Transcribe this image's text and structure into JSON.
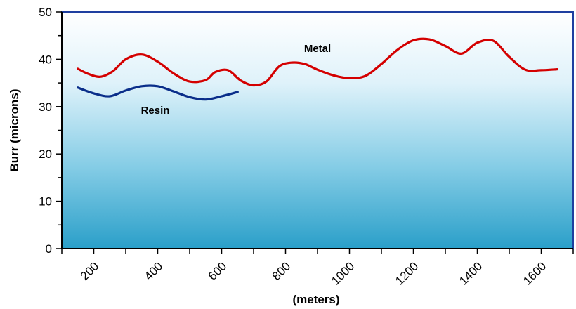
{
  "chart_data": {
    "type": "line",
    "title": "",
    "xlabel": "(meters)",
    "ylabel": "Burr (microns)",
    "xlim": [
      100,
      1700
    ],
    "ylim": [
      0,
      50
    ],
    "x_ticks": [
      200,
      400,
      600,
      800,
      1000,
      1200,
      1400,
      1600
    ],
    "y_ticks": [
      0,
      10,
      20,
      30,
      40,
      50
    ],
    "grid": false,
    "legend": "inline labels",
    "background": "gradient light-blue to white",
    "series": [
      {
        "name": "Metal",
        "color": "#d40000",
        "x": [
          150,
          180,
          220,
          260,
          300,
          350,
          400,
          450,
          500,
          550,
          580,
          620,
          660,
          700,
          740,
          780,
          820,
          860,
          900,
          950,
          1000,
          1050,
          1100,
          1150,
          1200,
          1250,
          1300,
          1350,
          1400,
          1450,
          1500,
          1550,
          1600,
          1650
        ],
        "values": [
          38,
          37,
          36.3,
          37.5,
          40,
          41,
          39.5,
          37,
          35.3,
          35.6,
          37.3,
          37.7,
          35.5,
          34.5,
          35.3,
          38.5,
          39.3,
          39,
          37.8,
          36.6,
          36,
          36.5,
          39,
          42,
          44,
          44.2,
          42.8,
          41.2,
          43.5,
          43.9,
          40.5,
          37.8,
          37.7,
          37.9
        ]
      },
      {
        "name": "Resin",
        "color": "#0a2e8a",
        "x": [
          150,
          200,
          250,
          300,
          350,
          400,
          450,
          500,
          550,
          600,
          650
        ],
        "values": [
          34,
          32.8,
          32.2,
          33.4,
          34.3,
          34.3,
          33.2,
          32,
          31.5,
          32.2,
          33.1
        ]
      }
    ]
  }
}
